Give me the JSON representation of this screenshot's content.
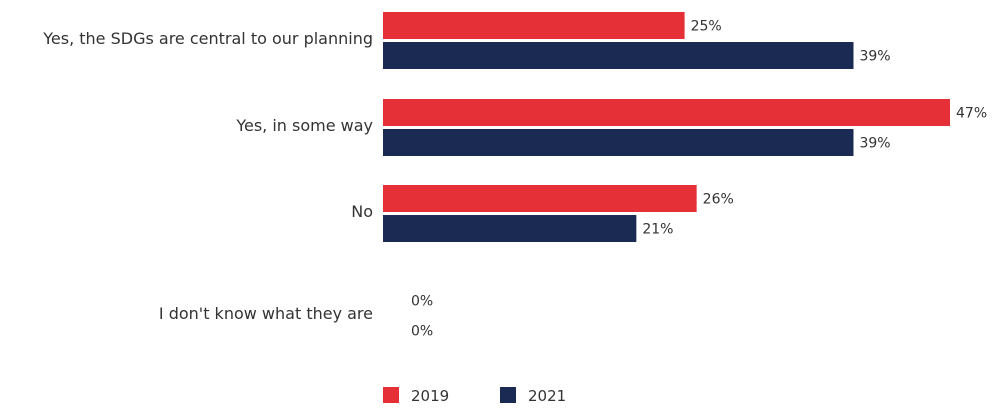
{
  "chart_data": {
    "type": "bar",
    "orientation": "horizontal",
    "categories": [
      "Yes, the SDGs are central to our planning",
      "Yes, in some way",
      "No",
      "I don't know what they are"
    ],
    "series": [
      {
        "name": "2019",
        "values": [
          25,
          47,
          26,
          0
        ],
        "color": "#e63038"
      },
      {
        "name": "2021",
        "values": [
          39,
          39,
          21,
          0
        ],
        "color": "#1b2a52"
      }
    ],
    "value_suffix": "%",
    "xlim": [
      0,
      47
    ],
    "grid": false,
    "legend_position": "bottom"
  }
}
